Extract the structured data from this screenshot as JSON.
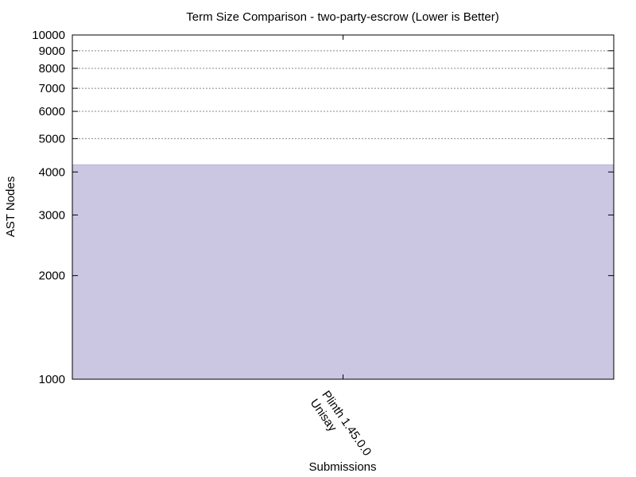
{
  "chart_data": {
    "type": "bar",
    "title": "Term Size Comparison - two-party-escrow (Lower is Better)",
    "xlabel": "Submissions",
    "ylabel": "AST Nodes",
    "yscale": "log",
    "ylim": [
      1000,
      10000
    ],
    "yticks": [
      "1000",
      "2000",
      "3000",
      "4000",
      "5000",
      "6000",
      "7000",
      "8000",
      "9000",
      "10000"
    ],
    "ytick_values": [
      1000,
      2000,
      3000,
      4000,
      5000,
      6000,
      7000,
      8000,
      9000,
      10000
    ],
    "grid": "horizontal dotted, from 5000 up",
    "legend": "none",
    "categories": [
      "Plinth 1.45.0.0 Unisay"
    ],
    "category_lines": [
      "Plinth 1.45.0.0",
      "Unisay"
    ],
    "values": [
      4200
    ],
    "colors": {
      "bar": "#cbc6e1",
      "bar_edge": "#a6a1c4",
      "axis": "#000000",
      "grid": "#888888"
    }
  }
}
